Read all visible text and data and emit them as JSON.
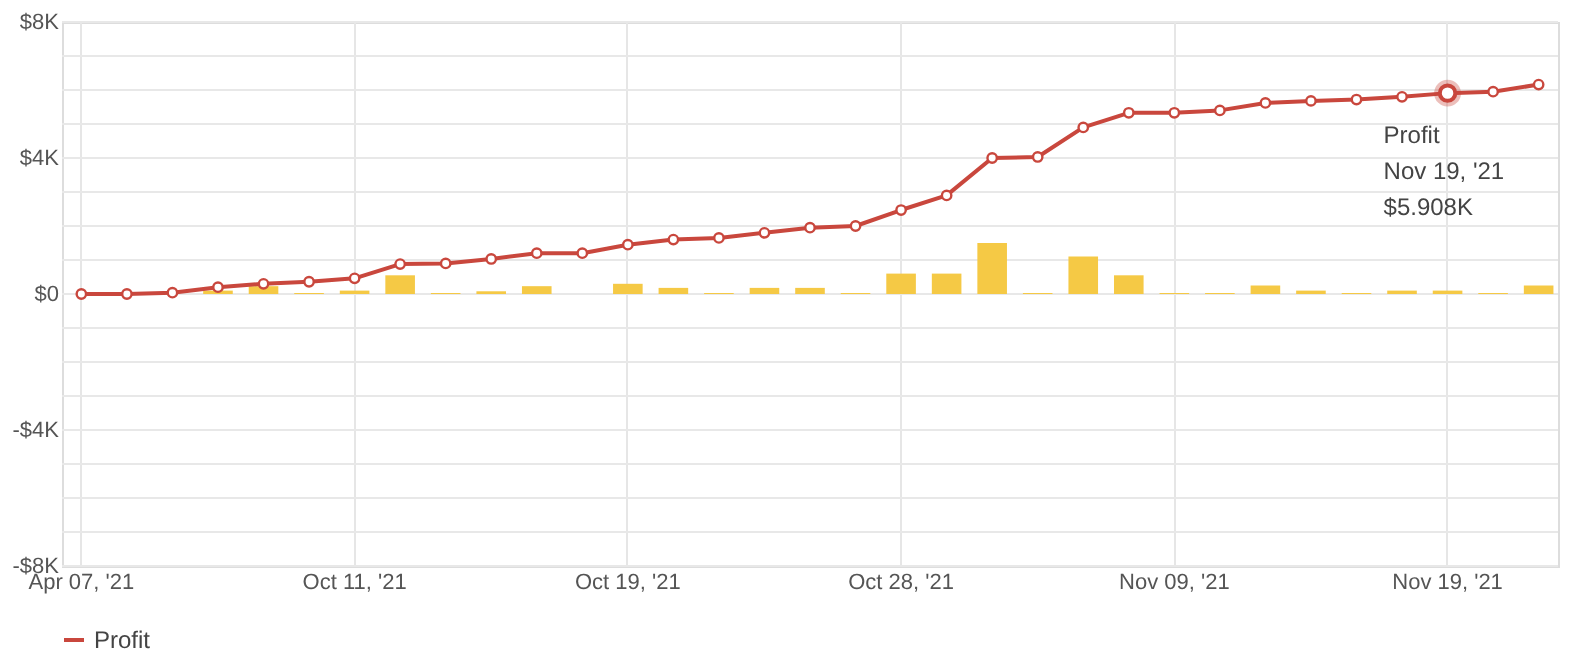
{
  "chart_data": {
    "type": "line",
    "categories": [
      "Apr 07, '21",
      null,
      null,
      null,
      null,
      null,
      "Oct 11, '21",
      null,
      null,
      null,
      null,
      null,
      "Oct 19, '21",
      null,
      null,
      null,
      null,
      null,
      "Oct 28, '21",
      null,
      null,
      null,
      null,
      null,
      "Nov 09, '21",
      null,
      null,
      null,
      null,
      null,
      "Nov 19, '21",
      null,
      null
    ],
    "series": [
      {
        "type": "bar",
        "color": "#f5c945",
        "values": [
          0,
          0,
          0,
          0.1,
          0.23,
          0.03,
          0.1,
          0.55,
          0.03,
          0.08,
          0.23,
          0,
          0.3,
          0.18,
          0.03,
          0.18,
          0.18,
          0.03,
          0.6,
          0.6,
          1.5,
          0.03,
          1.1,
          0.55,
          0.03,
          0.03,
          0.25,
          0.1,
          0.03,
          0.1,
          0.1,
          0.03,
          0.25
        ]
      },
      {
        "type": "line",
        "name": "Profit",
        "color": "#c9473d",
        "values": [
          0,
          0,
          0.04,
          0.2,
          0.3,
          0.36,
          0.46,
          0.88,
          0.9,
          1.03,
          1.2,
          1.2,
          1.45,
          1.6,
          1.65,
          1.8,
          1.95,
          2.0,
          2.47,
          2.9,
          4.0,
          4.03,
          4.9,
          5.33,
          5.33,
          5.4,
          5.62,
          5.68,
          5.72,
          5.8,
          5.908,
          5.95,
          6.16
        ]
      }
    ],
    "ylim": [
      -8,
      8
    ],
    "yticks": [
      {
        "value": -8,
        "label": "-$8K"
      },
      {
        "value": -7,
        "label": null
      },
      {
        "value": -6,
        "label": null
      },
      {
        "value": -5,
        "label": null
      },
      {
        "value": -4,
        "label": "-$4K"
      },
      {
        "value": -3,
        "label": null
      },
      {
        "value": -2,
        "label": null
      },
      {
        "value": -1,
        "label": null
      },
      {
        "value": 0,
        "label": "$0"
      },
      {
        "value": 1,
        "label": null
      },
      {
        "value": 2,
        "label": null
      },
      {
        "value": 3,
        "label": null
      },
      {
        "value": 4,
        "label": "$4K"
      },
      {
        "value": 5,
        "label": null
      },
      {
        "value": 6,
        "label": null
      },
      {
        "value": 7,
        "label": null
      },
      {
        "value": 8,
        "label": "$8K"
      }
    ],
    "annotations": [
      {
        "text": "Profit\nNov 19, '21\n$5.908K",
        "x": "Nov 19, '21",
        "y": 5.908
      }
    ],
    "grid": true,
    "legend": "bottom",
    "marker": "circle",
    "line_style": "solid"
  }
}
